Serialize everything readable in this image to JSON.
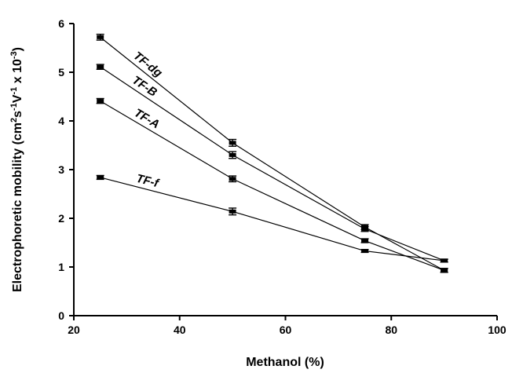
{
  "chart_data": {
    "type": "line",
    "xlabel": "Methanol (%)",
    "ylabel": {
      "prefix": "Electrophoretic mobility (cm",
      "sup1": "2",
      "mid1": "s",
      "sup2": "-1",
      "mid2": "V",
      "sup3": "-1",
      "mid3": " x 10",
      "sup4": "-3",
      "suffix": ")"
    },
    "xlim": [
      20,
      100
    ],
    "ylim": [
      0,
      6
    ],
    "xticks": [
      "20",
      "40",
      "60",
      "80",
      "100"
    ],
    "yticks": [
      "0",
      "1",
      "2",
      "3",
      "4",
      "5",
      "6"
    ],
    "grid": false,
    "x": [
      25,
      50,
      75,
      90
    ],
    "series": [
      {
        "name": "TF-dg",
        "values": [
          5.72,
          3.55,
          1.82,
          0.93
        ],
        "errors": [
          0.06,
          0.07,
          0.05,
          0.04
        ]
      },
      {
        "name": "TF-B",
        "values": [
          5.11,
          3.3,
          1.78,
          1.13
        ],
        "errors": [
          0.05,
          0.07,
          0.05,
          0.03
        ]
      },
      {
        "name": "TF-A",
        "values": [
          4.41,
          2.81,
          1.54,
          0.93
        ],
        "errors": [
          0.05,
          0.06,
          0.04,
          0.04
        ]
      },
      {
        "name": "TF-f",
        "values": [
          2.84,
          2.14,
          1.33,
          1.13
        ],
        "errors": [
          0.04,
          0.07,
          0.03,
          0.03
        ]
      }
    ]
  }
}
